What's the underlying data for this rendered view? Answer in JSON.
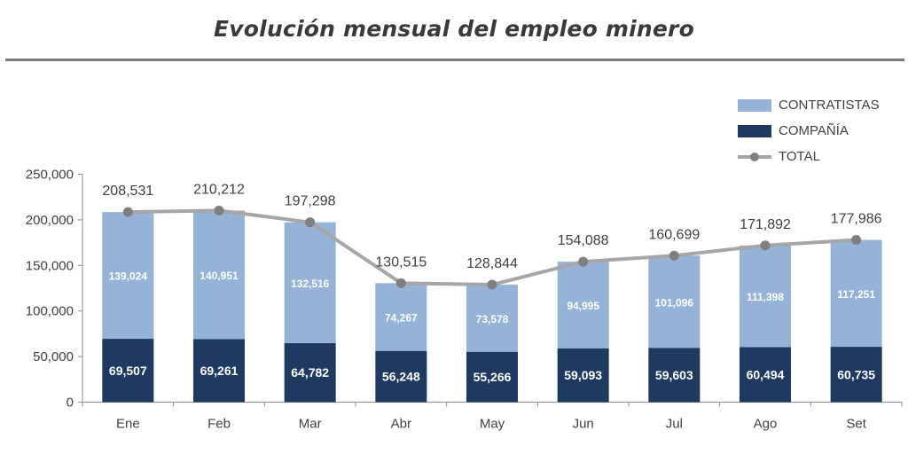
{
  "title": "Evolución mensual del empleo minero",
  "legend": {
    "contratistas": "CONTRATISTAS",
    "compania": "COMPAÑÍA",
    "total": "TOTAL"
  },
  "colors": {
    "contratistas": "#95b3d7",
    "compania": "#1f3a60",
    "total_line": "#a6a6a6",
    "total_marker": "#7f7f7f"
  },
  "chart_data": {
    "type": "bar",
    "stacked": true,
    "categories": [
      "Ene",
      "Feb",
      "Mar",
      "Abr",
      "May",
      "Jun",
      "Jul",
      "Ago",
      "Set"
    ],
    "series": [
      {
        "name": "COMPAÑÍA",
        "values": [
          69507,
          69261,
          64782,
          56248,
          55266,
          59093,
          59603,
          60494,
          60735
        ],
        "labels": [
          "69,507",
          "69,261",
          "64,782",
          "56,248",
          "55,266",
          "59,093",
          "59,603",
          "60,494",
          "60,735"
        ]
      },
      {
        "name": "CONTRATISTAS",
        "values": [
          139024,
          140951,
          132516,
          74267,
          73578,
          94995,
          101096,
          111398,
          117251
        ],
        "labels": [
          "139,024",
          "140,951",
          "132,516",
          "74,267",
          "73,578",
          "94,995",
          "101,096",
          "111,398",
          "117,251"
        ]
      }
    ],
    "total": {
      "name": "TOTAL",
      "type": "line",
      "values": [
        208531,
        210212,
        197298,
        130515,
        128844,
        154088,
        160699,
        171892,
        177986
      ],
      "labels": [
        "208,531",
        "210,212",
        "197,298",
        "130,515",
        "128,844",
        "154,088",
        "160,699",
        "171,892",
        "177,986"
      ]
    },
    "ylim": [
      0,
      250000
    ],
    "yticks": [
      0,
      50000,
      100000,
      150000,
      200000,
      250000
    ],
    "ytick_labels": [
      "0",
      "50,000",
      "100,000",
      "150,000",
      "200,000",
      "250,000"
    ],
    "xlabel": "",
    "ylabel": "",
    "grid": false,
    "legend_position": "top-right"
  }
}
